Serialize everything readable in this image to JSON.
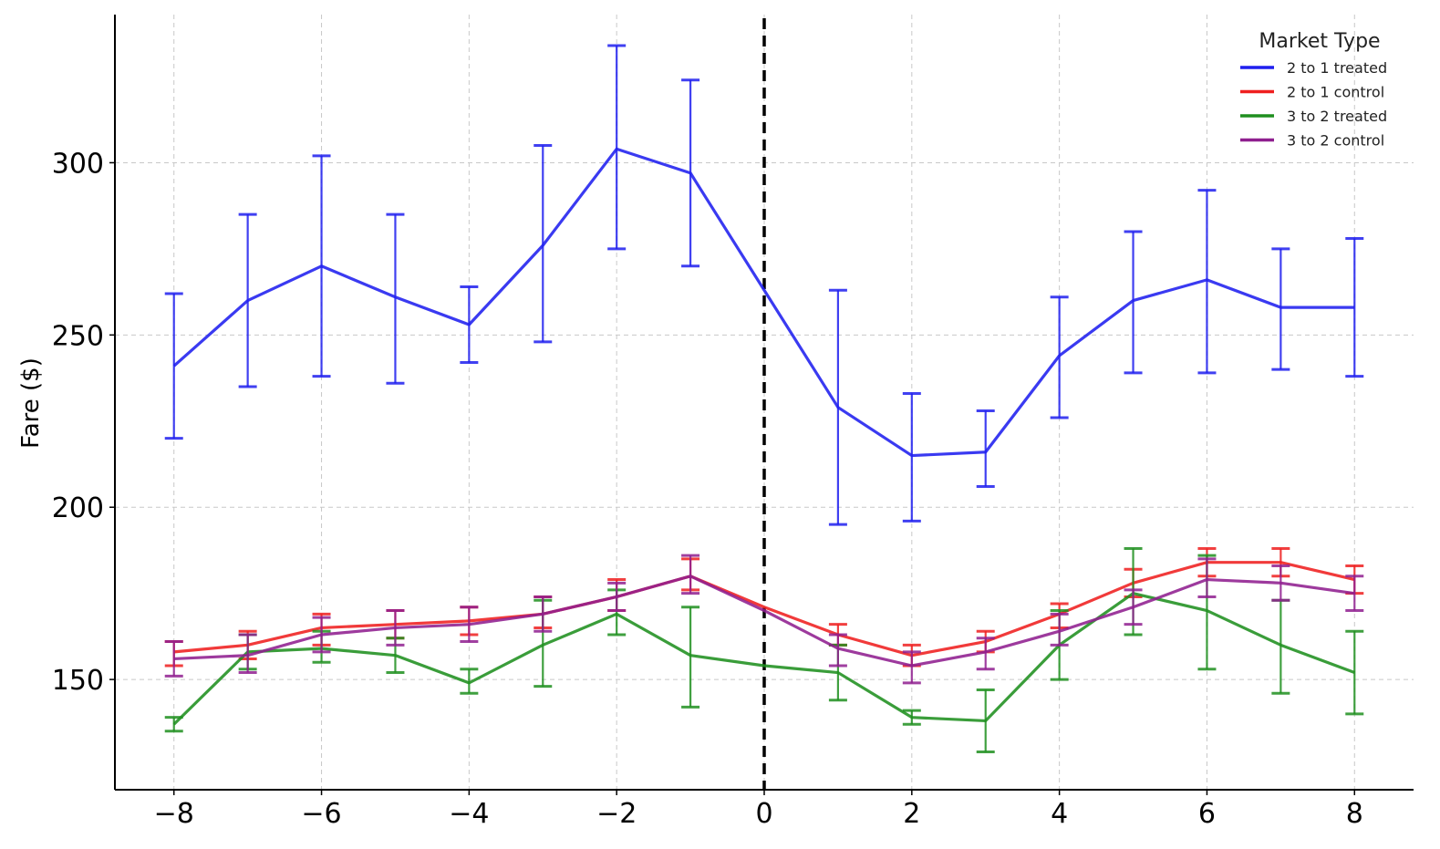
{
  "chart_data": {
    "type": "line",
    "title": "",
    "xlabel": "",
    "ylabel": "Fare ($)",
    "xlim": [
      -8.8,
      8.8
    ],
    "ylim": [
      118,
      343
    ],
    "xticks": [
      -8,
      -6,
      -4,
      -2,
      0,
      2,
      4,
      6,
      8
    ],
    "xtick_labels": [
      "−8",
      "−6",
      "−4",
      "−2",
      "0",
      "2",
      "4",
      "6",
      "8"
    ],
    "yticks": [
      150,
      200,
      250,
      300
    ],
    "ytick_labels": [
      "150",
      "200",
      "250",
      "300"
    ],
    "grid": true,
    "vline": {
      "x": 0,
      "style": "dashed",
      "color": "#000000"
    },
    "legend": {
      "title": "Market Type",
      "placement": "top-right"
    },
    "x": [
      -8,
      -7,
      -6,
      -5,
      -4,
      -3,
      -2,
      -1,
      0,
      1,
      2,
      3,
      4,
      5,
      6,
      7,
      8
    ],
    "series": [
      {
        "name": "2 to 1 treated",
        "color": "#1f1fef",
        "values": [
          241,
          260,
          270,
          261,
          253,
          276,
          304,
          297,
          263,
          229,
          215,
          216,
          244,
          260,
          266,
          258,
          258
        ],
        "err_low": [
          220,
          235,
          238,
          236,
          242,
          248,
          275,
          270,
          null,
          195,
          196,
          206,
          226,
          239,
          239,
          240,
          238
        ],
        "err_high": [
          262,
          285,
          302,
          285,
          264,
          305,
          334,
          324,
          null,
          263,
          233,
          228,
          261,
          280,
          292,
          275,
          278
        ]
      },
      {
        "name": "2 to 1 control",
        "color": "#ef1f1f",
        "values": [
          158,
          160,
          165,
          166,
          167,
          169,
          174,
          180,
          171,
          163,
          157,
          161,
          169,
          178,
          184,
          184,
          179
        ],
        "err_low": [
          154,
          156,
          160,
          162,
          163,
          165,
          170,
          176,
          null,
          160,
          154,
          158,
          165,
          174,
          180,
          180,
          175
        ],
        "err_high": [
          161,
          164,
          169,
          170,
          171,
          174,
          179,
          185,
          null,
          166,
          160,
          164,
          172,
          182,
          188,
          188,
          183
        ]
      },
      {
        "name": "3 to 2 treated",
        "color": "#1f8f1f",
        "values": [
          137,
          158,
          159,
          157,
          149,
          160,
          169,
          157,
          154,
          152,
          139,
          138,
          160,
          175,
          170,
          160,
          152
        ],
        "err_low": [
          135,
          153,
          155,
          152,
          146,
          148,
          163,
          142,
          null,
          144,
          137,
          129,
          150,
          163,
          153,
          146,
          140
        ],
        "err_high": [
          139,
          163,
          164,
          162,
          153,
          173,
          176,
          171,
          null,
          160,
          141,
          147,
          170,
          188,
          186,
          173,
          164
        ]
      },
      {
        "name": "3 to 2 control",
        "color": "#8f1f8f",
        "values": [
          156,
          157,
          163,
          165,
          166,
          169,
          174,
          180,
          170,
          159,
          154,
          158,
          164,
          171,
          179,
          178,
          175
        ],
        "err_low": [
          151,
          152,
          158,
          160,
          161,
          164,
          170,
          175,
          null,
          154,
          149,
          153,
          160,
          166,
          174,
          173,
          170
        ],
        "err_high": [
          161,
          163,
          168,
          170,
          171,
          174,
          178,
          186,
          null,
          163,
          158,
          162,
          169,
          176,
          185,
          183,
          180
        ]
      }
    ]
  }
}
